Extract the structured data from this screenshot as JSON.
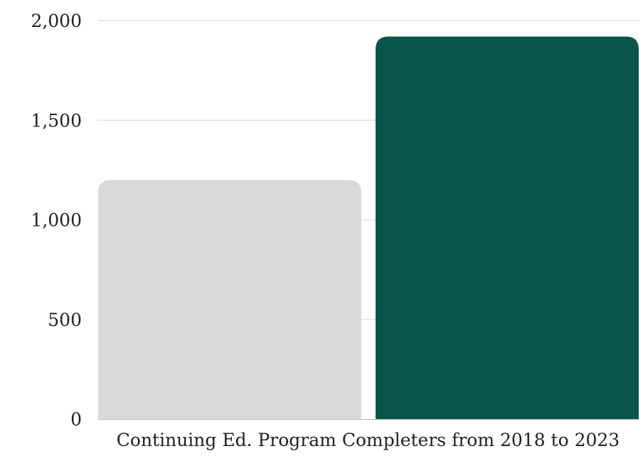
{
  "chart_data": {
    "type": "bar",
    "title": "",
    "xlabel": "",
    "ylabel": "",
    "categories": [
      "Continuing Ed. Program Completers from 2018 to 2023"
    ],
    "series": [
      {
        "color": "#d9d9d9",
        "values": [
          1200
        ]
      },
      {
        "color": "#0b544e",
        "values": [
          1920
        ]
      }
    ],
    "ylim": [
      0,
      2000
    ],
    "y_ticks": [
      0,
      500,
      1000,
      1500,
      2000
    ],
    "y_tick_labels": [
      "0",
      "500",
      "1,000",
      "1,500",
      "2,000"
    ],
    "grid": true,
    "legend": "none"
  }
}
